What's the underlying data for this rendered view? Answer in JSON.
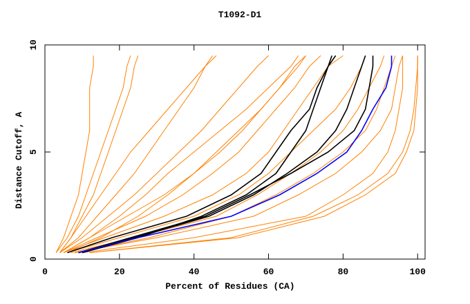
{
  "chart_data": {
    "type": "line",
    "title": "T1092-D1",
    "x_label": "Percent of Residues (CA)",
    "y_label": "Distance Cutoff, A",
    "xlim": [
      0,
      102
    ],
    "ylim": [
      0,
      10
    ],
    "xticks": [
      0,
      20,
      40,
      60,
      80,
      100
    ],
    "yticks": [
      0,
      5,
      10
    ],
    "series": [
      {
        "color": "#ff8000",
        "x": [
          3,
          5,
          7,
          9,
          10,
          11,
          12,
          12,
          12,
          13,
          13
        ],
        "values": [
          0.3,
          1,
          2,
          3,
          4,
          5,
          6,
          7,
          8,
          9,
          9.5
        ]
      },
      {
        "color": "#ff8000",
        "x": [
          3,
          6,
          9,
          11,
          13,
          15,
          17,
          19,
          21,
          22,
          23
        ],
        "values": [
          0.3,
          1,
          2,
          3,
          4,
          5,
          6,
          7,
          8,
          9,
          9.5
        ]
      },
      {
        "color": "#ff8000",
        "x": [
          4,
          7,
          10,
          13,
          15,
          17,
          19,
          21,
          23,
          24,
          25
        ],
        "values": [
          0.3,
          1,
          2,
          3,
          4,
          5,
          6,
          7,
          8,
          9,
          9.5
        ]
      },
      {
        "color": "#ff8000",
        "x": [
          4,
          7,
          11,
          15,
          19,
          23,
          28,
          33,
          38,
          43,
          46
        ],
        "values": [
          0.3,
          1,
          2,
          3,
          4,
          5,
          6,
          7,
          8,
          9,
          9.5
        ]
      },
      {
        "color": "#ff8000",
        "x": [
          4,
          9,
          14,
          19,
          24,
          28,
          32,
          36,
          40,
          43,
          45
        ],
        "values": [
          0.3,
          1,
          2,
          3,
          4,
          5,
          6,
          7,
          8,
          9,
          9.5
        ]
      },
      {
        "color": "#ff8000",
        "x": [
          5,
          12,
          20,
          27,
          33,
          40,
          47,
          54,
          60,
          66,
          68
        ],
        "values": [
          0.3,
          1,
          2,
          3,
          4,
          5,
          6,
          7,
          8,
          9,
          9.5
        ]
      },
      {
        "color": "#ff8000",
        "x": [
          6,
          15,
          25,
          33,
          40,
          46,
          52,
          58,
          63,
          68,
          70
        ],
        "values": [
          0.3,
          1,
          2,
          3,
          4,
          5,
          6,
          7,
          8,
          9,
          9.5
        ]
      },
      {
        "color": "#ff8000",
        "x": [
          4,
          10,
          17,
          24,
          30,
          36,
          42,
          47,
          52,
          57,
          60
        ],
        "values": [
          0.3,
          1,
          2,
          3,
          4,
          5,
          6,
          7,
          8,
          9,
          9.5
        ]
      },
      {
        "color": "#ff8000",
        "x": [
          5,
          12,
          22,
          32,
          40,
          47,
          53,
          58,
          63,
          67,
          70
        ],
        "values": [
          0.3,
          1,
          2,
          3,
          4,
          5,
          6,
          7,
          8,
          9,
          9.5
        ]
      },
      {
        "color": "#ff8000",
        "x": [
          5,
          14,
          27,
          37,
          45,
          52,
          57,
          62,
          67,
          71,
          74
        ],
        "values": [
          0.3,
          1,
          2,
          3,
          4,
          5,
          6,
          7,
          8,
          9,
          9.5
        ]
      },
      {
        "color": "#ff8000",
        "x": [
          5,
          16,
          32,
          45,
          54,
          60,
          64,
          68,
          72,
          76,
          80
        ],
        "values": [
          0.3,
          1,
          2,
          3,
          4,
          5,
          6,
          7,
          8,
          9,
          9.5
        ]
      },
      {
        "color": "#ff8000",
        "x": [
          6,
          20,
          40,
          52,
          60,
          66,
          72,
          78,
          82,
          85,
          86
        ],
        "values": [
          0.3,
          1,
          2,
          3,
          4,
          5,
          6,
          7,
          8,
          9,
          9.5
        ]
      },
      {
        "color": "#ff8000",
        "x": [
          7,
          24,
          46,
          57,
          66,
          74,
          80,
          84,
          87,
          90,
          91
        ],
        "values": [
          0.3,
          1,
          2,
          3,
          4,
          5,
          6,
          7,
          8,
          9,
          9.5
        ]
      },
      {
        "color": "#ff8000",
        "x": [
          8,
          28,
          50,
          62,
          72,
          80,
          86,
          89,
          91,
          93,
          94
        ],
        "values": [
          0.3,
          1,
          2,
          3,
          4,
          5,
          6,
          7,
          8,
          9,
          9.5
        ]
      },
      {
        "color": "#ff8000",
        "x": [
          8,
          30,
          56,
          68,
          78,
          85,
          90,
          93,
          94,
          95,
          96
        ],
        "values": [
          0.3,
          1,
          2,
          3,
          4,
          5,
          6,
          7,
          8,
          9,
          9.5
        ]
      },
      {
        "color": "#ff8000",
        "x": [
          10,
          40,
          70,
          80,
          88,
          92,
          94,
          95,
          96,
          96,
          96
        ],
        "values": [
          0.3,
          1,
          2,
          3,
          4,
          5,
          6,
          7,
          8,
          9,
          9.5
        ]
      },
      {
        "color": "#ff8000",
        "x": [
          12,
          50,
          72,
          84,
          92,
          96,
          98,
          99,
          99.5,
          100,
          100
        ],
        "values": [
          0.3,
          1,
          2,
          3,
          4,
          5,
          6,
          7,
          8,
          9,
          9.5
        ]
      },
      {
        "color": "#ff8000",
        "x": [
          12,
          52,
          75,
          86,
          94,
          97,
          99,
          99.5,
          100,
          100,
          100
        ],
        "values": [
          0.3,
          1,
          2,
          3,
          4,
          5,
          6,
          7,
          8,
          9,
          9.5
        ]
      },
      {
        "color": "#000000",
        "x": [
          6,
          18,
          38,
          50,
          58,
          62,
          66,
          71,
          73,
          76,
          78
        ],
        "values": [
          0.3,
          1,
          2,
          3,
          4,
          5,
          6,
          7,
          8,
          9,
          9.5
        ]
      },
      {
        "color": "#000000",
        "x": [
          10,
          25,
          42,
          54,
          62,
          66,
          70,
          72,
          74,
          76,
          77
        ],
        "values": [
          0.3,
          1,
          2,
          3,
          4,
          5,
          6,
          7,
          8,
          9,
          9.5
        ]
      },
      {
        "color": "#000000",
        "x": [
          9,
          24,
          44,
          56,
          65,
          73,
          78,
          81,
          83,
          85,
          86
        ],
        "values": [
          0.3,
          1,
          2,
          3,
          4,
          5,
          6,
          7,
          8,
          9,
          9.5
        ]
      },
      {
        "color": "#000000",
        "x": [
          9,
          23,
          43,
          55,
          66,
          76,
          83,
          86,
          87,
          88,
          88
        ],
        "values": [
          0.3,
          1,
          2,
          3,
          4,
          5,
          6,
          7,
          8,
          9,
          9.5
        ]
      },
      {
        "color": "#0000ff",
        "x": [
          9,
          25,
          50,
          63,
          73,
          81,
          85,
          88,
          91.5,
          93,
          93
        ],
        "values": [
          0.3,
          1,
          2,
          3,
          4,
          5,
          6,
          7,
          8,
          9,
          9.5
        ]
      }
    ]
  }
}
